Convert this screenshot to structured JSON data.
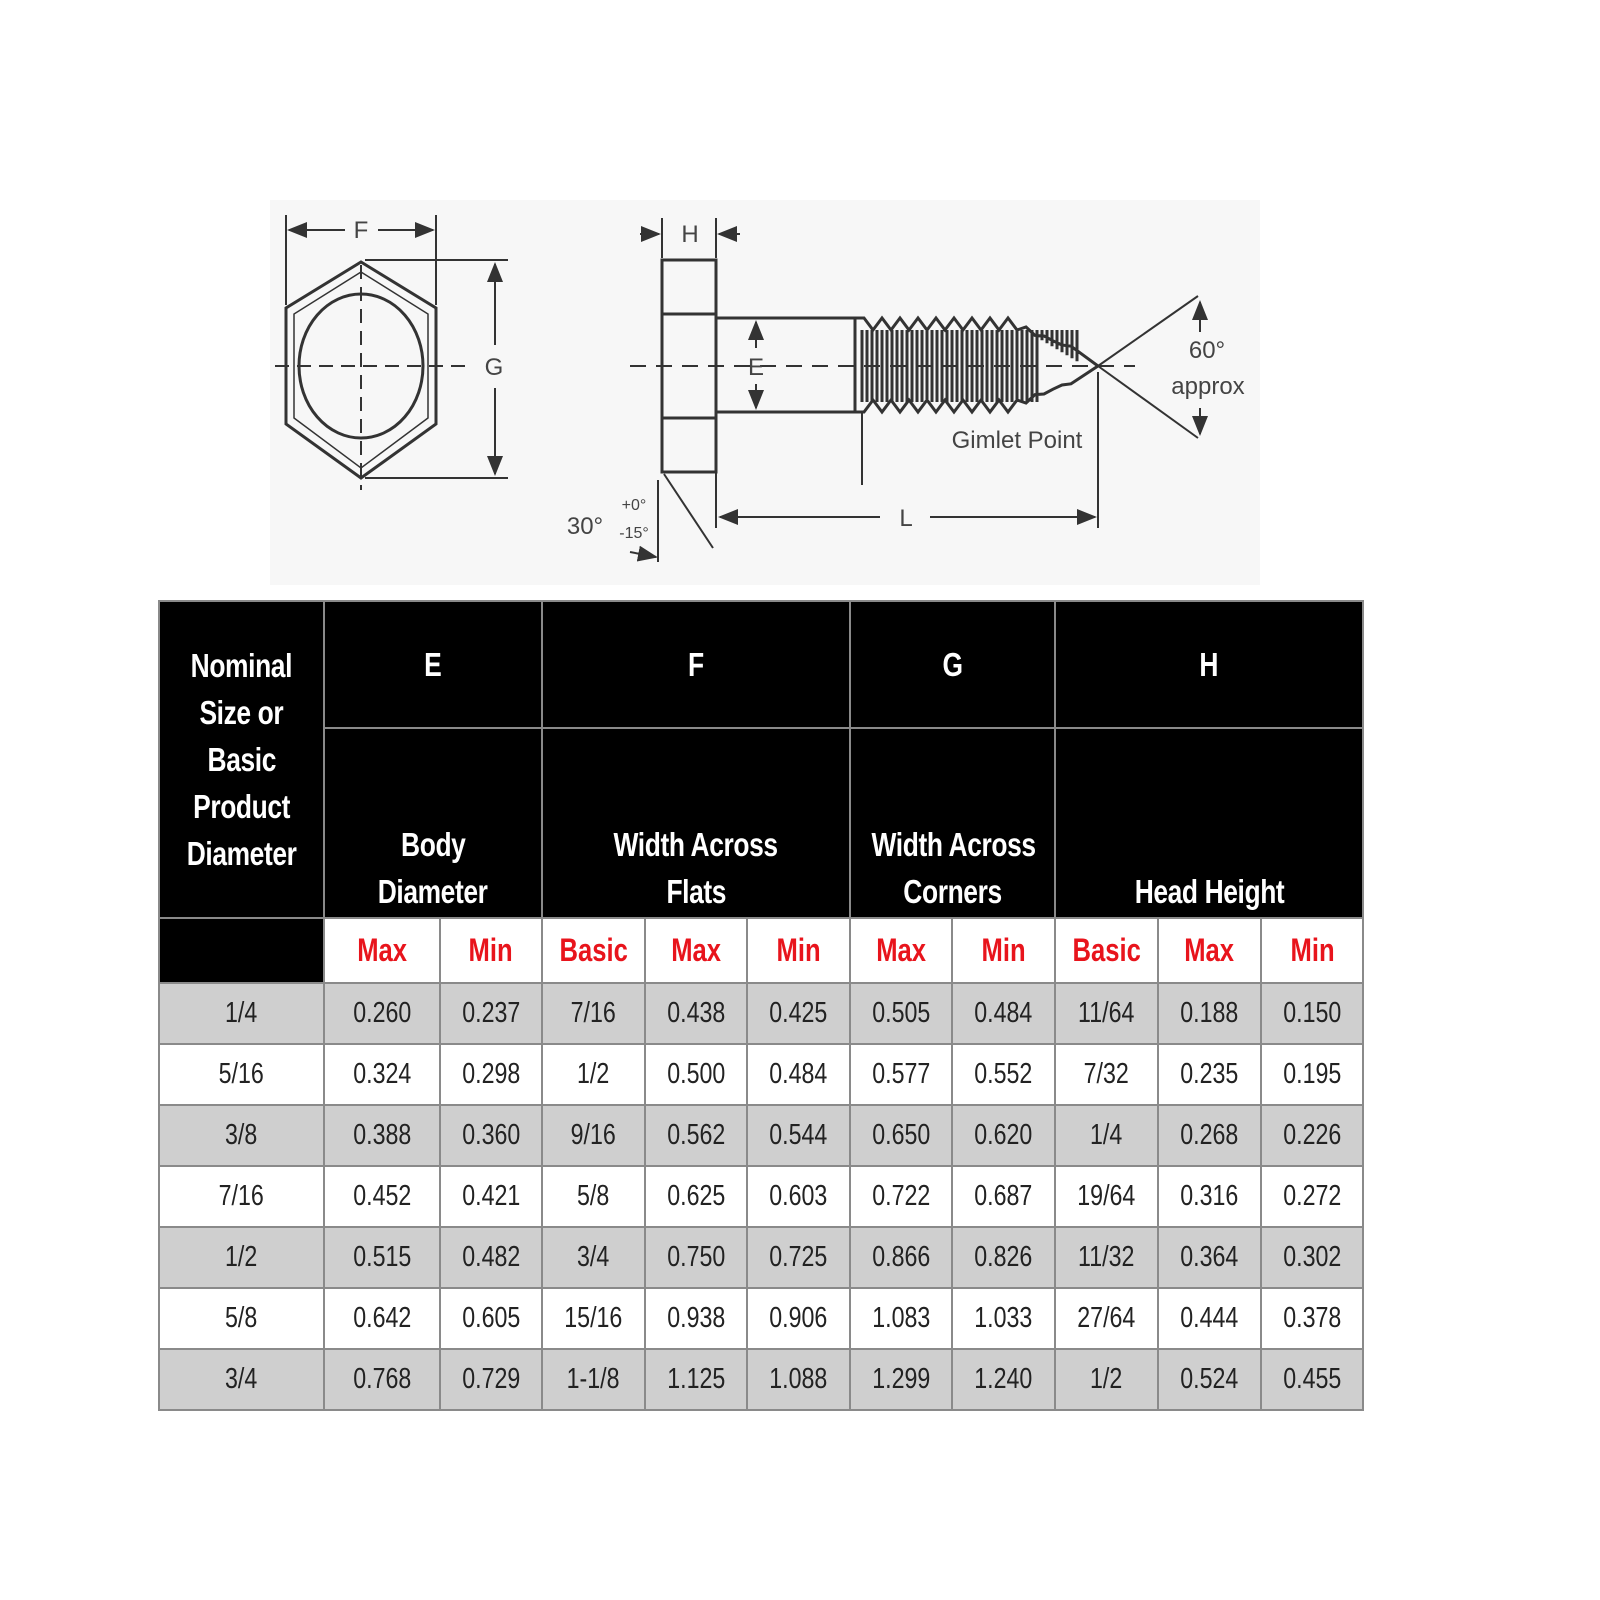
{
  "diagram": {
    "labels": {
      "F": "F",
      "G": "G",
      "H": "H",
      "E": "E",
      "L": "L",
      "angle": "60°",
      "approx": "approx",
      "gimlet": "Gimlet Point",
      "chamfer": "30°",
      "tol_plus": "+0°",
      "tol_minus": "-15°"
    }
  },
  "table": {
    "nominal_header": [
      "Nominal",
      "Size or",
      "Basic",
      "Product",
      "Diameter"
    ],
    "groups": [
      {
        "letter": "E",
        "desc": [
          "Body",
          "Diameter"
        ],
        "subs": [
          "Max",
          "Min"
        ]
      },
      {
        "letter": "F",
        "desc": [
          "Width Across",
          "Flats"
        ],
        "subs": [
          "Basic",
          "Max",
          "Min"
        ]
      },
      {
        "letter": "G",
        "desc": [
          "Width Across",
          "Corners"
        ],
        "subs": [
          "Max",
          "Min"
        ]
      },
      {
        "letter": "H",
        "desc": [
          "Head Height"
        ],
        "subs": [
          "Basic",
          "Max",
          "Min"
        ]
      }
    ],
    "rows": [
      [
        "1/4",
        "0.260",
        "0.237",
        "7/16",
        "0.438",
        "0.425",
        "0.505",
        "0.484",
        "11/64",
        "0.188",
        "0.150"
      ],
      [
        "5/16",
        "0.324",
        "0.298",
        "1/2",
        "0.500",
        "0.484",
        "0.577",
        "0.552",
        "7/32",
        "0.235",
        "0.195"
      ],
      [
        "3/8",
        "0.388",
        "0.360",
        "9/16",
        "0.562",
        "0.544",
        "0.650",
        "0.620",
        "1/4",
        "0.268",
        "0.226"
      ],
      [
        "7/16",
        "0.452",
        "0.421",
        "5/8",
        "0.625",
        "0.603",
        "0.722",
        "0.687",
        "19/64",
        "0.316",
        "0.272"
      ],
      [
        "1/2",
        "0.515",
        "0.482",
        "3/4",
        "0.750",
        "0.725",
        "0.866",
        "0.826",
        "11/32",
        "0.364",
        "0.302"
      ],
      [
        "5/8",
        "0.642",
        "0.605",
        "15/16",
        "0.938",
        "0.906",
        "1.083",
        "1.033",
        "27/64",
        "0.444",
        "0.378"
      ],
      [
        "3/4",
        "0.768",
        "0.729",
        "1-1/8",
        "1.125",
        "1.088",
        "1.299",
        "1.240",
        "1/2",
        "0.524",
        "0.455"
      ]
    ],
    "colors": {
      "header_bg": "#000000",
      "sub_label": "#e8141c",
      "stripe": "#cfcfcf"
    }
  }
}
